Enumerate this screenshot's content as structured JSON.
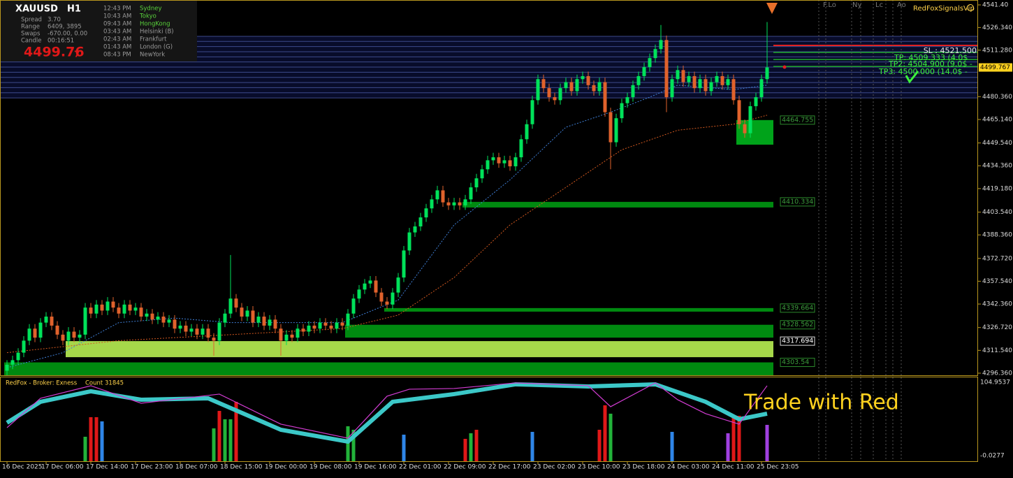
{
  "chart_data": {
    "type": "candlestick",
    "up_color": "#00e25a",
    "down_color": "#e0622c",
    "ylim": [
      4294.96,
      4544.65
    ],
    "yticks": [
      {
        "value": 4541.4,
        "label": "4541.40"
      },
      {
        "value": 4526.34,
        "label": "4526.340"
      },
      {
        "value": 4511.28,
        "label": "4511.280"
      },
      {
        "value": 4480.36,
        "label": "4480.360"
      },
      {
        "value": 4465.14,
        "label": "4465.140"
      },
      {
        "value": 4449.54,
        "label": "4449.540"
      },
      {
        "value": 4434.36,
        "label": "4434.360"
      },
      {
        "value": 4419.18,
        "label": "4419.180"
      },
      {
        "value": 4403.54,
        "label": "4403.540"
      },
      {
        "value": 4388.36,
        "label": "4388.360"
      },
      {
        "value": 4372.72,
        "label": "4372.720"
      },
      {
        "value": 4357.54,
        "label": "4357.540"
      },
      {
        "value": 4342.36,
        "label": "4342.360"
      },
      {
        "value": 4326.72,
        "label": "4326.720"
      },
      {
        "value": 4311.54,
        "label": "4311.540"
      },
      {
        "value": 4296.36,
        "label": "4296.360"
      }
    ],
    "grid": false,
    "current_price": 4499.767,
    "categories": [
      "16 Dec 2025",
      null,
      null,
      null,
      null,
      null,
      null,
      "17 Dec 06:00",
      null,
      null,
      null,
      null,
      null,
      null,
      null,
      "17 Dec 14:00",
      null,
      null,
      null,
      null,
      null,
      null,
      null,
      "17 Dec 23:00",
      null,
      null,
      null,
      null,
      null,
      null,
      null,
      "18 Dec 07:00",
      null,
      null,
      null,
      null,
      null,
      null,
      null,
      "18 Dec 15:00",
      null,
      null,
      null,
      null,
      null,
      null,
      null,
      "19 Dec 00:00",
      null,
      null,
      null,
      null,
      null,
      null,
      null,
      "19 Dec 08:00",
      null,
      null,
      null,
      null,
      null,
      null,
      null,
      "19 Dec 16:00",
      null,
      null,
      null,
      null,
      null,
      null,
      null,
      "22 Dec 01:00",
      null,
      null,
      null,
      null,
      null,
      null,
      null,
      "22 Dec 09:00",
      null,
      null,
      null,
      null,
      null,
      null,
      null,
      "22 Dec 17:00",
      null,
      null,
      null,
      null,
      null,
      null,
      null,
      "23 Dec 02:00",
      null,
      null,
      null,
      null,
      null,
      null,
      null,
      "23 Dec 10:00",
      null,
      null,
      null,
      null,
      null,
      null,
      null,
      "23 Dec 18:00",
      null,
      null,
      null,
      null,
      null,
      null,
      null,
      "24 Dec 03:00",
      null,
      null,
      null,
      null,
      null,
      null,
      null,
      "24 Dec 11:00",
      null,
      null,
      null,
      null,
      null,
      null,
      null,
      "25 Dec 23:05",
      null
    ],
    "open": [
      4298,
      4302,
      4305,
      4310,
      4318,
      4326,
      4320,
      4330,
      4334,
      4328,
      4322,
      4318,
      4324,
      4320,
      4322,
      4340,
      4336,
      4342,
      4338,
      4344,
      4340,
      4336,
      4342,
      4338,
      4340,
      4334,
      4336,
      4332,
      4334,
      4330,
      4332,
      4326,
      4328,
      4324,
      4326,
      4322,
      4326,
      4320,
      4318,
      4330,
      4336,
      4346,
      4340,
      4334,
      4338,
      4330,
      4334,
      4328,
      4332,
      4326,
      4318,
      4322,
      4320,
      4326,
      4324,
      4328,
      4326,
      4330,
      4328,
      4326,
      4330,
      4328,
      4336,
      4346,
      4352,
      4356,
      4358,
      4350,
      4344,
      4342,
      4350,
      4360,
      4378,
      4390,
      4394,
      4400,
      4406,
      4412,
      4418,
      4410,
      4408,
      4410,
      4408,
      4412,
      4420,
      4426,
      4432,
      4438,
      4440,
      4436,
      4438,
      4434,
      4440,
      4452,
      4462,
      4478,
      4492,
      4486,
      4480,
      4478,
      4486,
      4490,
      4484,
      4492,
      4494,
      4488,
      4484,
      4490,
      4470,
      4450,
      4466,
      4476,
      4480,
      4488,
      4494,
      4500,
      4506,
      4512,
      4518,
      4480,
      4492,
      4498,
      4490,
      4494,
      4486,
      4492,
      4484,
      4490,
      4494,
      4488,
      4492,
      4478,
      4462,
      4456,
      4474,
      4480,
      4492
    ],
    "high": [
      4305,
      4308,
      4313,
      4321,
      4329,
      4329,
      4333,
      4337,
      4337,
      4331,
      4325,
      4327,
      4327,
      4325,
      4343,
      4343,
      4345,
      4345,
      4347,
      4347,
      4343,
      4345,
      4345,
      4343,
      4343,
      4339,
      4339,
      4337,
      4337,
      4335,
      4335,
      4331,
      4331,
      4329,
      4329,
      4329,
      4329,
      4323,
      4333,
      4339,
      4375,
      4349,
      4343,
      4341,
      4341,
      4337,
      4337,
      4335,
      4335,
      4329,
      4325,
      4325,
      4329,
      4329,
      4331,
      4331,
      4333,
      4333,
      4331,
      4333,
      4333,
      4339,
      4349,
      4355,
      4359,
      4361,
      4361,
      4353,
      4347,
      4353,
      4363,
      4381,
      4393,
      4397,
      4403,
      4409,
      4415,
      4421,
      4421,
      4413,
      4413,
      4413,
      4415,
      4423,
      4429,
      4435,
      4441,
      4443,
      4443,
      4441,
      4441,
      4443,
      4455,
      4465,
      4481,
      4495,
      4495,
      4489,
      4483,
      4489,
      4493,
      4493,
      4495,
      4497,
      4497,
      4491,
      4493,
      4493,
      4473,
      4469,
      4479,
      4483,
      4491,
      4497,
      4503,
      4509,
      4515,
      4528,
      4521,
      4495,
      4501,
      4501,
      4497,
      4497,
      4495,
      4495,
      4493,
      4497,
      4497,
      4495,
      4495,
      4481,
      4465,
      4477,
      4483,
      4495,
      4530
    ],
    "low": [
      4295,
      4299,
      4302,
      4307,
      4315,
      4317,
      4317,
      4327,
      4325,
      4319,
      4315,
      4315,
      4317,
      4317,
      4319,
      4333,
      4333,
      4335,
      4335,
      4337,
      4333,
      4333,
      4335,
      4335,
      4331,
      4331,
      4329,
      4329,
      4327,
      4327,
      4323,
      4323,
      4321,
      4321,
      4319,
      4319,
      4317,
      4308,
      4315,
      4327,
      4333,
      4337,
      4331,
      4331,
      4327,
      4327,
      4325,
      4325,
      4323,
      4308,
      4315,
      4317,
      4317,
      4321,
      4321,
      4323,
      4323,
      4325,
      4323,
      4323,
      4325,
      4325,
      4333,
      4343,
      4349,
      4353,
      4347,
      4341,
      4339,
      4339,
      4347,
      4357,
      4375,
      4387,
      4391,
      4397,
      4403,
      4409,
      4407,
      4405,
      4405,
      4405,
      4405,
      4409,
      4417,
      4423,
      4429,
      4435,
      4433,
      4433,
      4431,
      4431,
      4437,
      4449,
      4459,
      4475,
      4483,
      4477,
      4475,
      4475,
      4483,
      4481,
      4481,
      4489,
      4485,
      4481,
      4481,
      4467,
      4432,
      4447,
      4463,
      4473,
      4477,
      4485,
      4491,
      4497,
      4503,
      4509,
      4470,
      4477,
      4489,
      4487,
      4487,
      4483,
      4483,
      4481,
      4481,
      4487,
      4485,
      4485,
      4475,
      4459,
      4453,
      4453,
      4471,
      4477,
      4489
    ],
    "close": [
      4302,
      4305,
      4310,
      4318,
      4326,
      4320,
      4330,
      4334,
      4328,
      4322,
      4318,
      4324,
      4320,
      4322,
      4340,
      4336,
      4342,
      4338,
      4344,
      4340,
      4336,
      4342,
      4338,
      4340,
      4334,
      4336,
      4332,
      4334,
      4330,
      4332,
      4326,
      4328,
      4324,
      4326,
      4322,
      4326,
      4320,
      4318,
      4330,
      4336,
      4346,
      4340,
      4334,
      4338,
      4330,
      4334,
      4328,
      4332,
      4326,
      4318,
      4322,
      4320,
      4326,
      4324,
      4328,
      4326,
      4330,
      4328,
      4326,
      4330,
      4328,
      4336,
      4346,
      4352,
      4356,
      4358,
      4350,
      4344,
      4342,
      4350,
      4360,
      4378,
      4390,
      4394,
      4400,
      4406,
      4412,
      4418,
      4410,
      4408,
      4410,
      4408,
      4412,
      4420,
      4426,
      4432,
      4438,
      4440,
      4436,
      4438,
      4434,
      4440,
      4452,
      4462,
      4478,
      4492,
      4486,
      4480,
      4478,
      4486,
      4490,
      4484,
      4492,
      4494,
      4488,
      4484,
      4490,
      4470,
      4450,
      4466,
      4476,
      4480,
      4488,
      4494,
      4500,
      4506,
      4512,
      4518,
      4480,
      4492,
      4498,
      4490,
      4494,
      4486,
      4492,
      4484,
      4490,
      4494,
      4488,
      4492,
      4478,
      4462,
      4456,
      4474,
      4480,
      4492,
      4499.767
    ],
    "moving_averages": [
      {
        "color": "#3f7fd6",
        "x": [
          0,
          10,
          20,
          30,
          40,
          50,
          60,
          70,
          80,
          90,
          100,
          108,
          115,
          120,
          130,
          136
        ],
        "values": [
          4300,
          4310,
          4330,
          4333,
          4330,
          4330,
          4330,
          4345,
          4395,
          4425,
          4460,
          4470,
          4480,
          4488,
          4485,
          4488
        ]
      },
      {
        "color": "#d2581f",
        "x": [
          0,
          20,
          40,
          60,
          70,
          80,
          90,
          100,
          110,
          120,
          130,
          136
        ],
        "values": [
          4310,
          4318,
          4322,
          4326,
          4335,
          4360,
          4395,
          4420,
          4445,
          4458,
          4462,
          4468
        ]
      }
    ],
    "resistance_band": {
      "top": 4520.5,
      "bottom": 4479.5,
      "color": "#3c4a8c"
    },
    "zones": [
      {
        "level": 4464.755,
        "bottom": 4448.4,
        "from": 131,
        "color": "#00a31a"
      },
      {
        "level": 4410.334,
        "bottom": 4406.6,
        "from": 82,
        "color": "#008a10"
      },
      {
        "level": 4339.664,
        "bottom": 4337.3,
        "from": 68,
        "color": "#008a10"
      },
      {
        "level": 4328.562,
        "bottom": 4320,
        "from": 61,
        "color": "#008a10"
      },
      {
        "level": 4317.694,
        "bottom": 4307,
        "from": 11,
        "color": "#a6d84a"
      },
      {
        "level": 4303.54,
        "bottom": 4294.96,
        "from": 0,
        "color": "#008a10"
      }
    ],
    "trade_levels": [
      {
        "text": "SL : 4521.500",
        "level": 4514.4,
        "color": "#e02020"
      },
      {
        "text": "TP: 4509.333 (4.0$",
        "level": 4509.8,
        "color": "#1fa82a"
      },
      {
        "text": "TP2: 4504.900 (9.0$ -",
        "level": 4505,
        "color": "#1fa82a"
      },
      {
        "text": "TP3: 4500.000 (14.0$ -",
        "level": 4500.4,
        "color": "#1fa82a"
      }
    ],
    "brand": "RedFoxSignalsVip",
    "session_markers": [
      "F.Lo",
      "Ny",
      "Lc",
      "Ao"
    ],
    "slogan": "Trade with Red",
    "indicator": {
      "title": "RedFox - Broker: Exness",
      "count_label": "Count",
      "count": 31845,
      "ylim": [
        -0.0277,
        104.9537
      ],
      "yticks": [
        104.9537,
        -0.0277
      ],
      "bars": {
        "x": [
          14,
          15,
          16,
          17,
          37,
          38,
          39,
          40,
          41,
          61,
          62,
          71,
          82,
          83,
          84,
          94,
          106,
          107,
          108,
          119,
          129,
          130,
          131,
          136
        ],
        "values": [
          27,
          55,
          55,
          49,
          39,
          64,
          52,
          52,
          77,
          42,
          37,
          30,
          24,
          32,
          37,
          34,
          37,
          72,
          60,
          34,
          32,
          57,
          57,
          44
        ],
        "colors": [
          "#22b33a",
          "#e01818",
          "#e01818",
          "#2f86e8",
          "#22b33a",
          "#e01818",
          "#22b33a",
          "#22b33a",
          "#e01818",
          "#22b33a",
          "#22b33a",
          "#2f86e8",
          "#e01818",
          "#22b33a",
          "#e01818",
          "#2f86e8",
          "#e01818",
          "#e01818",
          "#22b33a",
          "#2f86e8",
          "#a040e0",
          "#e01818",
          "#e01818",
          "#a040e0"
        ]
      },
      "lines": [
        {
          "color": "#3cc8c8",
          "x": [
            0,
            6,
            15,
            24,
            36,
            49,
            61,
            69,
            80,
            91,
            104,
            116,
            125,
            131,
            136
          ],
          "values": [
            47,
            77,
            92,
            80,
            82,
            37,
            20,
            77,
            88,
            102,
            99,
            102,
            77,
            52,
            60
          ]
        },
        {
          "color": "#d23cd2",
          "x": [
            0,
            6,
            15,
            24,
            38,
            49,
            61,
            68,
            72,
            80,
            91,
            104,
            108,
            116,
            120,
            125,
            131,
            136
          ],
          "values": [
            40,
            82,
            100,
            75,
            88,
            45,
            25,
            85,
            95,
            96,
            104,
            100,
            70,
            104,
            80,
            60,
            45,
            100
          ]
        }
      ]
    }
  },
  "info_panel": {
    "symbol": "XAUUSD",
    "timeframe": "H1",
    "rows": [
      {
        "label": "Spread",
        "value": "3.70"
      },
      {
        "label": "Range",
        "value": "6409, 3895"
      },
      {
        "label": "Swaps",
        "value": "-670.00, 0.00"
      },
      {
        "label": "Candle",
        "value": "00:16:51"
      }
    ],
    "price_main": "4499.76",
    "price_last": "7",
    "clocks": [
      {
        "time": "12:43 PM",
        "city": "Sydney",
        "color": "#5ad23c"
      },
      {
        "time": "10:43 AM",
        "city": "Tokyo",
        "color": "#5ad23c"
      },
      {
        "time": "09:43 AM",
        "city": "HongKong",
        "color": "#5ad23c"
      },
      {
        "time": "03:43 AM",
        "city": "Helsinki  (B)",
        "color": "#9a9a9a"
      },
      {
        "time": "02:43 AM",
        "city": "Frankfurt",
        "color": "#9a9a9a"
      },
      {
        "time": "01:43 AM",
        "city": "London  (G)",
        "color": "#9a9a9a"
      },
      {
        "time": "08:43 PM",
        "city": "NewYork",
        "color": "#9a9a9a"
      }
    ]
  }
}
